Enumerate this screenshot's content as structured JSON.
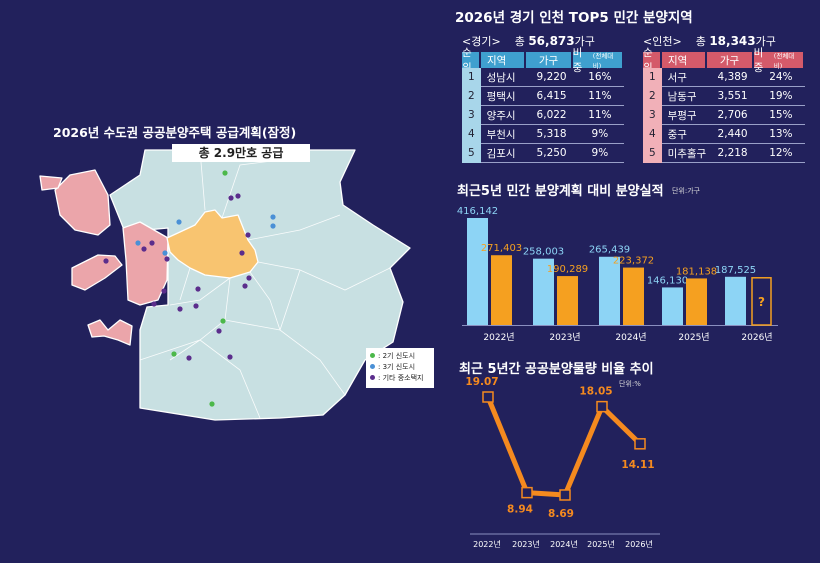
{
  "top5": {
    "title": "2026년 경기 인천 TOP5 민간 분양지역",
    "gyeonggi": {
      "label": "<경기>",
      "total_prefix": "총 ",
      "total": "56,873",
      "unit": "가구",
      "headers": [
        "순위",
        "지역",
        "가구",
        "비중",
        "(전체대비)"
      ],
      "rows": [
        [
          "1",
          "성남시",
          "9,220",
          "16%"
        ],
        [
          "2",
          "평택시",
          "6,415",
          "11%"
        ],
        [
          "3",
          "양주시",
          "6,022",
          "11%"
        ],
        [
          "4",
          "부천시",
          "5,318",
          "9%"
        ],
        [
          "5",
          "김포시",
          "5,250",
          "9%"
        ]
      ]
    },
    "incheon": {
      "label": "<인천>",
      "total_prefix": "총 ",
      "total": "18,343",
      "unit": "가구",
      "headers": [
        "순위",
        "지역",
        "가구",
        "비중",
        "(전체대비)"
      ],
      "rows": [
        [
          "1",
          "서구",
          "4,389",
          "24%"
        ],
        [
          "2",
          "남동구",
          "3,551",
          "19%"
        ],
        [
          "3",
          "부평구",
          "2,706",
          "15%"
        ],
        [
          "4",
          "중구",
          "2,440",
          "13%"
        ],
        [
          "5",
          "미추홀구",
          "2,218",
          "12%"
        ]
      ]
    }
  },
  "map": {
    "title": "2026년 수도권 공공분양주택 공급계획(잠정)",
    "banner": "총 2.9만호 공급",
    "legend": [
      {
        "label": ": 2기 신도시",
        "color": "#4cb84a"
      },
      {
        "label": ": 3기 신도시",
        "color": "#4a90d6"
      },
      {
        "label": ": 기타 중소택지",
        "color": "#5b2d8c"
      }
    ],
    "colors": {
      "gyeonggi": "#c8e0e2",
      "incheon": "#eba5aa",
      "seoul": "#f8c470"
    }
  },
  "chart_data": [
    {
      "type": "bar",
      "title": "최근5년 민간 분양계획 대비 분양실적",
      "unit": "단위:가구",
      "categories": [
        "2022년",
        "2023년",
        "2024년",
        "2025년",
        "2026년"
      ],
      "series": [
        {
          "name": "분양계획",
          "color": "#8dd4f5",
          "values": [
            416142,
            258003,
            265439,
            146130,
            187525
          ],
          "labels": [
            "416,142",
            "258,003",
            "265,439",
            "146,130",
            "187,525"
          ]
        },
        {
          "name": "분양실적",
          "color": "#f5a020",
          "values": [
            271403,
            190289,
            223372,
            181138,
            null
          ],
          "labels": [
            "271,403",
            "190,289",
            "223,372",
            "181,138",
            "?"
          ]
        }
      ],
      "ylim": [
        0,
        416142
      ]
    },
    {
      "type": "line",
      "title": "최근 5년간 공공분양물량 비율 추이",
      "unit": "단위:%",
      "categories": [
        "2022년",
        "2023년",
        "2024년",
        "2025년",
        "2026년"
      ],
      "values": [
        19.07,
        8.94,
        8.69,
        18.05,
        14.11
      ],
      "labels": [
        "19.07",
        "8.94",
        "8.69",
        "18.05",
        "14.11"
      ],
      "color": "#f58a1f"
    }
  ]
}
